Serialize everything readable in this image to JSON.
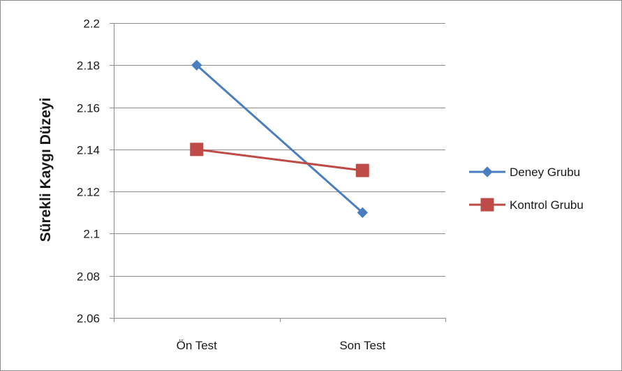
{
  "chart_data": {
    "type": "line",
    "categories": [
      "Ön Test",
      "Son Test"
    ],
    "series": [
      {
        "name": "Deney Grubu",
        "values": [
          2.18,
          2.11
        ],
        "color": "#4a7ebf",
        "marker": "diamond"
      },
      {
        "name": "Kontrol Grubu",
        "values": [
          2.14,
          2.13
        ],
        "color": "#be4b48",
        "marker": "square"
      }
    ],
    "title": "",
    "xlabel": "",
    "ylabel": "Sürekli Kaygı Düzeyi",
    "ylim": [
      2.06,
      2.2
    ],
    "yticks": [
      "2.06",
      "2.08",
      "2.1",
      "2.12",
      "2.14",
      "2.16",
      "2.18",
      "2.2"
    ],
    "grid": true,
    "legend_position": "right"
  }
}
